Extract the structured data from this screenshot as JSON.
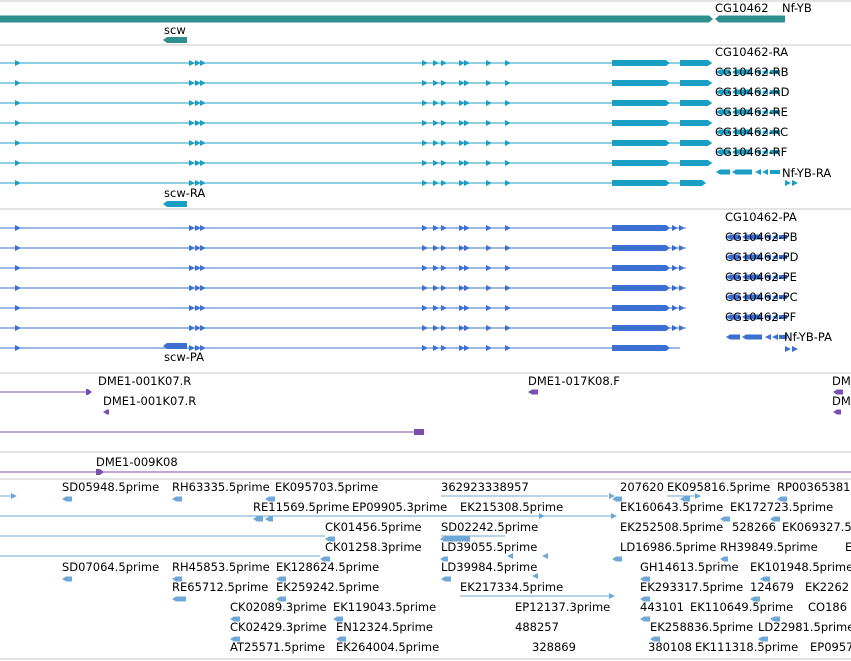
{
  "colors": {
    "gene": "#2f8f8f",
    "transcript": "#1a9ec4",
    "protein": "#3b6fd1",
    "clone": "#7b4fb0",
    "est": "#6fa8d6",
    "divider": "#c8c8c8"
  },
  "gene_track": {
    "labels": [
      "CG10462",
      "Nf-YB",
      "scw"
    ]
  },
  "transcript_track": {
    "labels": [
      "CG10462-RA",
      "CG10462-RB",
      "CG10462-RD",
      "CG10462-RE",
      "CG10462-RC",
      "CG10462-RF",
      "Nf-YB-RA",
      "scw-RA"
    ]
  },
  "protein_track": {
    "labels": [
      "CG10462-PA",
      "CG10462-PB",
      "CG10462-PD",
      "CG10462-PE",
      "CG10462-PC",
      "CG10462-PF",
      "Nf-YB-PA",
      "scw-PA"
    ]
  },
  "clone_track": {
    "labels": [
      "DME1-001K07.R",
      "DME1-017K08.F",
      "DM",
      "DME1-001K07.R",
      "DM",
      "DME1-009K08"
    ]
  },
  "est_track": {
    "labels": [
      "SD05948.5prime",
      "RH63335.5prime",
      "EK095703.5prime",
      "362923338957",
      "207620",
      "EK095816.5prime",
      "RP00365381",
      "RE11569.5prime",
      "EP09905.3prime",
      "EK215308.5prime",
      "EK160643.5prime",
      "EK172723.5prime",
      "CK01456.5prime",
      "SD02242.5prime",
      "EK252508.5prime",
      "528266",
      "EK069327.5",
      "CK01258.3prime",
      "LD39055.5prime",
      "LD16986.5prime",
      "RH39849.5prime",
      "E",
      "SD07064.5prime",
      "RH45853.5prime",
      "EK128624.5prime",
      "LD39984.5prime",
      "GH14613.5prime",
      "EK101948.5prime",
      "RE65712.5prime",
      "EK259242.5prime",
      "EK217334.5prime",
      "EK293317.5prime",
      "124679",
      "EK2262",
      "CK02089.3prime",
      "EK119043.5prime",
      "EP12137.3prime",
      "443101",
      "EK110649.5prime",
      "CO186",
      "CK02429.3prime",
      "EN12324.5prime",
      "488257",
      "EK258836.5prime",
      "LD22981.5prime",
      "AT25571.5prime",
      "EK264004.5prime",
      "328869",
      "380108",
      "EK111318.5prime",
      "EP0957"
    ]
  }
}
